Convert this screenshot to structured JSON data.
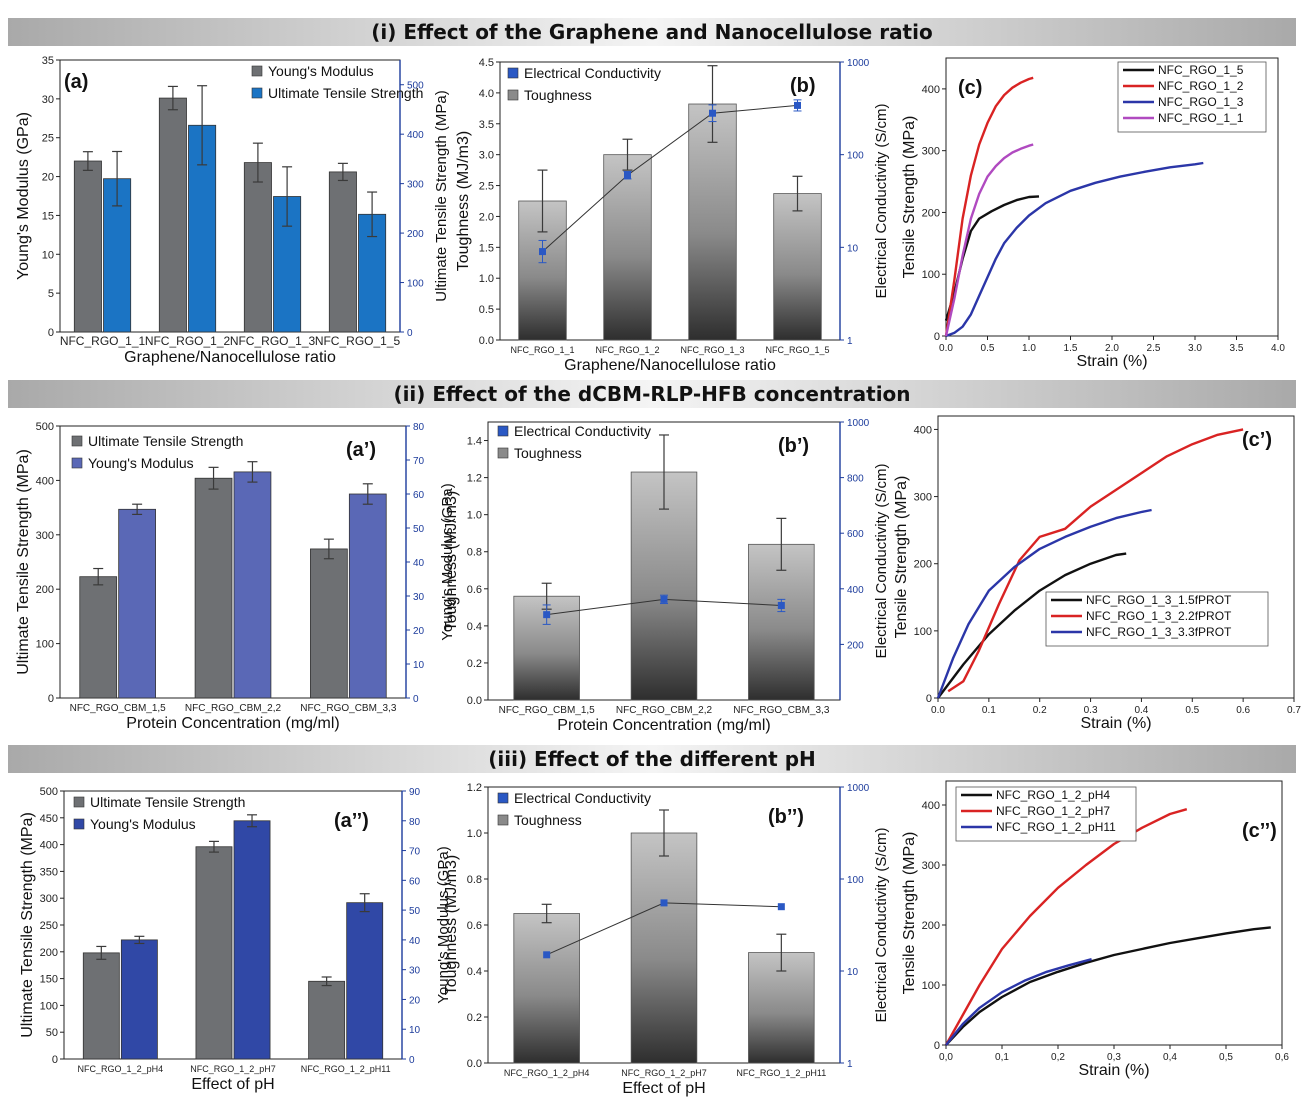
{
  "sections": [
    {
      "title": "(i) Effect of the Graphene and Nanocellulose ratio"
    },
    {
      "title": "(ii) Effect of the dCBM-RLP-HFB concentration"
    },
    {
      "title": "(iii) Effect of the different pH"
    }
  ],
  "colors": {
    "dark_bar": "#6e7073",
    "blue_bar": "#1b74c4",
    "purple_bar": "#5a68b6",
    "navy_bar": "#3048a6",
    "axis_blue": "#1d3c9c",
    "marker": "#2a58c4",
    "err": "#3a3a3a"
  },
  "chart_data": [
    {
      "id": "a",
      "type": "bar",
      "letter": "(a)",
      "xlabel": "Graphene/Nanocellulose ratio",
      "ylabel": "Young's Modulus (GPa)",
      "y2label": "Ultimate Tensile Strength (MPa)",
      "categories": [
        "NFC_RGO_1_1",
        "NFC_RGO_1_2",
        "NFC_RGO_1_3",
        "NFC_RGO_1_5"
      ],
      "ylim": [
        0,
        35
      ],
      "yticks": [
        0,
        5,
        10,
        15,
        20,
        25,
        30,
        35
      ],
      "y2lim": [
        0,
        550
      ],
      "y2ticks": [
        0,
        100,
        200,
        300,
        400,
        500
      ],
      "legend_position": "top-right",
      "series": [
        {
          "name": "Young's Modulus",
          "axis": "left",
          "color": "#6e7073",
          "values": [
            22,
            30.1,
            21.8,
            20.6
          ],
          "errors": [
            1.2,
            1.5,
            2.5,
            1.1
          ]
        },
        {
          "name": "Ultimate Tensile Strength",
          "axis": "right",
          "color": "#1b74c4",
          "values": [
            310,
            418,
            274,
            238
          ],
          "errors": [
            55,
            80,
            60,
            45
          ]
        }
      ]
    },
    {
      "id": "b",
      "type": "bar",
      "letter": "(b)",
      "xlabel": "Graphene/Nanocellulose ratio",
      "ylabel": "Toughness (MJ/m3)",
      "y2label": "Electrical Conductivity (S/cm)",
      "categories": [
        "NFC_RGO_1_1",
        "NFC_RGO_1_2",
        "NFC_RGO_1_3",
        "NFC_RGO_1_5"
      ],
      "ylim": [
        0,
        4.5
      ],
      "yticks": [
        "0.0",
        "0.5",
        "1.0",
        "1.5",
        "2.0",
        "2.5",
        "3.0",
        "3.5",
        "4.0",
        "4.5"
      ],
      "y2scale": "log",
      "y2lim": [
        1,
        1000
      ],
      "y2ticks": [
        1,
        10,
        100,
        1000
      ],
      "legend_position": "top-left",
      "series": [
        {
          "name": "Toughness",
          "axis": "left",
          "color": "#9a9a9a",
          "values": [
            2.25,
            3.0,
            3.82,
            2.37
          ],
          "errors": [
            0.5,
            0.25,
            0.62,
            0.28
          ]
        },
        {
          "name": "Electrical Conductivity",
          "axis": "right",
          "color": "#2a58c4",
          "values": [
            9,
            60,
            280,
            340
          ],
          "errors": [
            0.12,
            0.04,
            0.09,
            0.06
          ]
        }
      ]
    },
    {
      "id": "c",
      "type": "line",
      "letter": "(c)",
      "xlabel": "Strain (%)",
      "ylabel": "Tensile Strength (MPa)",
      "xlim": [
        0,
        4.0
      ],
      "xticks": [
        "0.0",
        "0.5",
        "1.0",
        "1.5",
        "2.0",
        "2.5",
        "3.0",
        "3.5",
        "4.0"
      ],
      "ylim": [
        0,
        450
      ],
      "yticks": [
        0,
        100,
        200,
        300,
        400
      ],
      "legend_position": "top-right",
      "series": [
        {
          "name": "NFC_RGO_1_5",
          "color": "#111111",
          "points": [
            [
              0,
              25
            ],
            [
              0.1,
              70
            ],
            [
              0.2,
              125
            ],
            [
              0.3,
              170
            ],
            [
              0.4,
              190
            ],
            [
              0.55,
              202
            ],
            [
              0.7,
              212
            ],
            [
              0.85,
              220
            ],
            [
              1.0,
              225
            ],
            [
              1.12,
              226
            ]
          ]
        },
        {
          "name": "NFC_RGO_1_2",
          "color": "#d92323",
          "points": [
            [
              0,
              0
            ],
            [
              0.1,
              90
            ],
            [
              0.2,
              190
            ],
            [
              0.3,
              260
            ],
            [
              0.4,
              310
            ],
            [
              0.5,
              345
            ],
            [
              0.6,
              372
            ],
            [
              0.7,
              390
            ],
            [
              0.8,
              402
            ],
            [
              0.9,
              410
            ],
            [
              1.0,
              416
            ],
            [
              1.05,
              418
            ]
          ]
        },
        {
          "name": "NFC_RGO_1_3",
          "color": "#2b36a8",
          "points": [
            [
              0,
              0
            ],
            [
              0.1,
              5
            ],
            [
              0.2,
              15
            ],
            [
              0.3,
              35
            ],
            [
              0.4,
              65
            ],
            [
              0.5,
              95
            ],
            [
              0.6,
              125
            ],
            [
              0.7,
              150
            ],
            [
              0.85,
              175
            ],
            [
              1.0,
              195
            ],
            [
              1.2,
              215
            ],
            [
              1.5,
              235
            ],
            [
              1.8,
              248
            ],
            [
              2.1,
              258
            ],
            [
              2.4,
              266
            ],
            [
              2.7,
              273
            ],
            [
              3.0,
              278
            ],
            [
              3.1,
              280
            ]
          ]
        },
        {
          "name": "NFC_RGO_1_1",
          "color": "#b04ac0",
          "points": [
            [
              0,
              0
            ],
            [
              0.1,
              60
            ],
            [
              0.2,
              130
            ],
            [
              0.3,
              190
            ],
            [
              0.4,
              230
            ],
            [
              0.5,
              258
            ],
            [
              0.6,
              275
            ],
            [
              0.7,
              288
            ],
            [
              0.8,
              297
            ],
            [
              0.9,
              303
            ],
            [
              1.0,
              308
            ],
            [
              1.05,
              310
            ]
          ]
        }
      ]
    },
    {
      "id": "a2",
      "type": "bar",
      "letter": "(a’)",
      "xlabel": "Protein Concentration (mg/ml)",
      "ylabel": "Ultimate Tensile Strength (MPa)",
      "y2label": "Young's Modulus (GPa)",
      "categories": [
        "NFC_RGO_CBM_1,5",
        "NFC_RGO_CBM_2,2",
        "NFC_RGO_CBM_3,3"
      ],
      "ylim": [
        0,
        500
      ],
      "yticks": [
        0,
        100,
        200,
        300,
        400,
        500
      ],
      "y2lim": [
        0,
        80
      ],
      "y2ticks": [
        0,
        10,
        20,
        30,
        40,
        50,
        60,
        70,
        80
      ],
      "legend_position": "top-left",
      "series": [
        {
          "name": "Ultimate Tensile Strength",
          "axis": "left",
          "color": "#6e7073",
          "values": [
            223,
            404,
            274
          ],
          "errors": [
            15,
            20,
            18
          ]
        },
        {
          "name": "Young's Modulus",
          "axis": "right",
          "color": "#5a68b6",
          "values": [
            55.5,
            66.5,
            60
          ],
          "errors": [
            1.5,
            3,
            3
          ]
        }
      ]
    },
    {
      "id": "b2",
      "type": "bar",
      "letter": "(b’)",
      "xlabel": "Protein Concentration (mg/ml)",
      "ylabel": "Toughness (MJ/m3)",
      "y2label": "Electrical Conductivity (S/cm)",
      "categories": [
        "NFC_RGO_CBM_1,5",
        "NFC_RGO_CBM_2,2",
        "NFC_RGO_CBM_3,3"
      ],
      "ylim": [
        0,
        1.5
      ],
      "yticks": [
        "0.0",
        "0.2",
        "0.4",
        "0.6",
        "0.8",
        "1.0",
        "1.2",
        "1.4"
      ],
      "y2lim": [
        0,
        1000
      ],
      "y2ticks": [
        200,
        400,
        600,
        800,
        1000
      ],
      "legend_position": "top-left",
      "series": [
        {
          "name": "Toughness",
          "axis": "left",
          "color": "#9a9a9a",
          "values": [
            0.56,
            1.23,
            0.84
          ],
          "errors": [
            0.07,
            0.2,
            0.14
          ]
        },
        {
          "name": "Electrical Conductivity",
          "axis": "right",
          "color": "#2a58c4",
          "values": [
            307,
            362,
            340
          ],
          "errors": [
            35,
            15,
            22
          ]
        }
      ]
    },
    {
      "id": "c2",
      "type": "line",
      "letter": "(c’)",
      "xlabel": "Strain (%)",
      "ylabel": "Tensile Strength (MPa)",
      "xlim": [
        0,
        0.7
      ],
      "xticks": [
        "0.0",
        "0.1",
        "0.2",
        "0.3",
        "0.4",
        "0.5",
        "0.6",
        "0.7"
      ],
      "ylim": [
        0,
        420
      ],
      "yticks": [
        0,
        100,
        200,
        300,
        400
      ],
      "legend_position": "bottom-right",
      "series": [
        {
          "name": "NFC_RGO_1_3_1.5fPROT",
          "color": "#111111",
          "points": [
            [
              0,
              0
            ],
            [
              0.05,
              50
            ],
            [
              0.1,
              95
            ],
            [
              0.15,
              130
            ],
            [
              0.2,
              160
            ],
            [
              0.25,
              183
            ],
            [
              0.3,
              200
            ],
            [
              0.35,
              213
            ],
            [
              0.37,
              215
            ]
          ]
        },
        {
          "name": "NFC_RGO_1_3_2.2fPROT",
          "color": "#d92323",
          "points": [
            [
              0.02,
              10
            ],
            [
              0.05,
              25
            ],
            [
              0.08,
              70
            ],
            [
              0.12,
              140
            ],
            [
              0.16,
              205
            ],
            [
              0.2,
              240
            ],
            [
              0.25,
              252
            ],
            [
              0.3,
              285
            ],
            [
              0.35,
              310
            ],
            [
              0.4,
              335
            ],
            [
              0.45,
              360
            ],
            [
              0.5,
              378
            ],
            [
              0.55,
              392
            ],
            [
              0.6,
              400
            ]
          ]
        },
        {
          "name": "NFC_RGO_1_3_3.3fPROT",
          "color": "#2b36a8",
          "points": [
            [
              0,
              0
            ],
            [
              0.03,
              60
            ],
            [
              0.06,
              110
            ],
            [
              0.1,
              160
            ],
            [
              0.15,
              195
            ],
            [
              0.2,
              222
            ],
            [
              0.25,
              240
            ],
            [
              0.3,
              255
            ],
            [
              0.35,
              268
            ],
            [
              0.4,
              277
            ],
            [
              0.42,
              280
            ]
          ]
        }
      ]
    },
    {
      "id": "a3",
      "type": "bar",
      "letter": "(a’’)",
      "xlabel": "Effect of pH",
      "ylabel": "Ultimate Tensile Strength (MPa)",
      "y2label": "Young's Modulus (GPa)",
      "categories": [
        "NFC_RGO_1_2_pH4",
        "NFC_RGO_1_2_pH7",
        "NFC_RGO_1_2_pH11"
      ],
      "ylim": [
        0,
        500
      ],
      "yticks": [
        0,
        50,
        100,
        150,
        200,
        250,
        300,
        350,
        400,
        450,
        500
      ],
      "y2lim": [
        0,
        90
      ],
      "y2ticks": [
        0,
        10,
        20,
        30,
        40,
        50,
        60,
        70,
        80,
        90
      ],
      "legend_position": "top-left",
      "series": [
        {
          "name": "Ultimate Tensile Strength",
          "axis": "left",
          "color": "#6e7073",
          "values": [
            198,
            396,
            145
          ],
          "errors": [
            12,
            10,
            8
          ]
        },
        {
          "name": "Young's Modulus",
          "axis": "right",
          "color": "#3048a6",
          "values": [
            40,
            80,
            52.5
          ],
          "errors": [
            1.2,
            2,
            3
          ]
        }
      ]
    },
    {
      "id": "b3",
      "type": "bar",
      "letter": "(b’’)",
      "xlabel": "Effect of pH",
      "ylabel": "Toughness (MJ/m3)",
      "y2label": "Electrical Conductivity (S/cm)",
      "categories": [
        "NFC_RGO_1_2_pH4",
        "NFC_RGO_1_2_pH7",
        "NFC_RGO_1_2_pH11"
      ],
      "ylim": [
        0,
        1.2
      ],
      "yticks": [
        "0.0",
        "0.2",
        "0.4",
        "0.6",
        "0.8",
        "1.0",
        "1.2"
      ],
      "y2scale": "log",
      "y2lim": [
        1,
        1000
      ],
      "y2ticks": [
        1,
        10,
        100,
        1000
      ],
      "legend_position": "top-left",
      "series": [
        {
          "name": "Toughness",
          "axis": "left",
          "color": "#9a9a9a",
          "values": [
            0.65,
            1.0,
            0.48
          ],
          "errors": [
            0.04,
            0.1,
            0.08
          ]
        },
        {
          "name": "Electrical Conductivity",
          "axis": "right",
          "color": "#2a58c4",
          "values": [
            15,
            55,
            50
          ],
          "errors": [
            0,
            0,
            0
          ]
        }
      ]
    },
    {
      "id": "c3",
      "type": "line",
      "letter": "(c’’)",
      "xlabel": "Strain (%)",
      "ylabel": "Tensile Strength (MPa)",
      "xlim": [
        0,
        0.6
      ],
      "xticks": [
        "0,0",
        "0,1",
        "0,2",
        "0,3",
        "0,4",
        "0,5",
        "0,6"
      ],
      "ylim": [
        0,
        440
      ],
      "yticks": [
        0,
        100,
        200,
        300,
        400
      ],
      "legend_position": "top-left",
      "series": [
        {
          "name": "NFC_RGO_1_2_pH4",
          "color": "#111111",
          "points": [
            [
              0,
              0
            ],
            [
              0.03,
              30
            ],
            [
              0.06,
              55
            ],
            [
              0.1,
              80
            ],
            [
              0.15,
              105
            ],
            [
              0.2,
              122
            ],
            [
              0.25,
              137
            ],
            [
              0.3,
              150
            ],
            [
              0.35,
              160
            ],
            [
              0.4,
              170
            ],
            [
              0.45,
              178
            ],
            [
              0.5,
              186
            ],
            [
              0.55,
              193
            ],
            [
              0.58,
              196
            ]
          ]
        },
        {
          "name": "NFC_RGO_1_2_pH7",
          "color": "#d92323",
          "points": [
            [
              0,
              0
            ],
            [
              0.03,
              50
            ],
            [
              0.06,
              100
            ],
            [
              0.1,
              160
            ],
            [
              0.15,
              215
            ],
            [
              0.2,
              262
            ],
            [
              0.25,
              300
            ],
            [
              0.3,
              335
            ],
            [
              0.35,
              362
            ],
            [
              0.4,
              385
            ],
            [
              0.43,
              393
            ]
          ]
        },
        {
          "name": "NFC_RGO_1_2_pH11",
          "color": "#2b36a8",
          "points": [
            [
              0,
              0
            ],
            [
              0.03,
              35
            ],
            [
              0.06,
              62
            ],
            [
              0.1,
              88
            ],
            [
              0.14,
              107
            ],
            [
              0.18,
              122
            ],
            [
              0.22,
              133
            ],
            [
              0.26,
              143
            ]
          ]
        }
      ]
    }
  ]
}
